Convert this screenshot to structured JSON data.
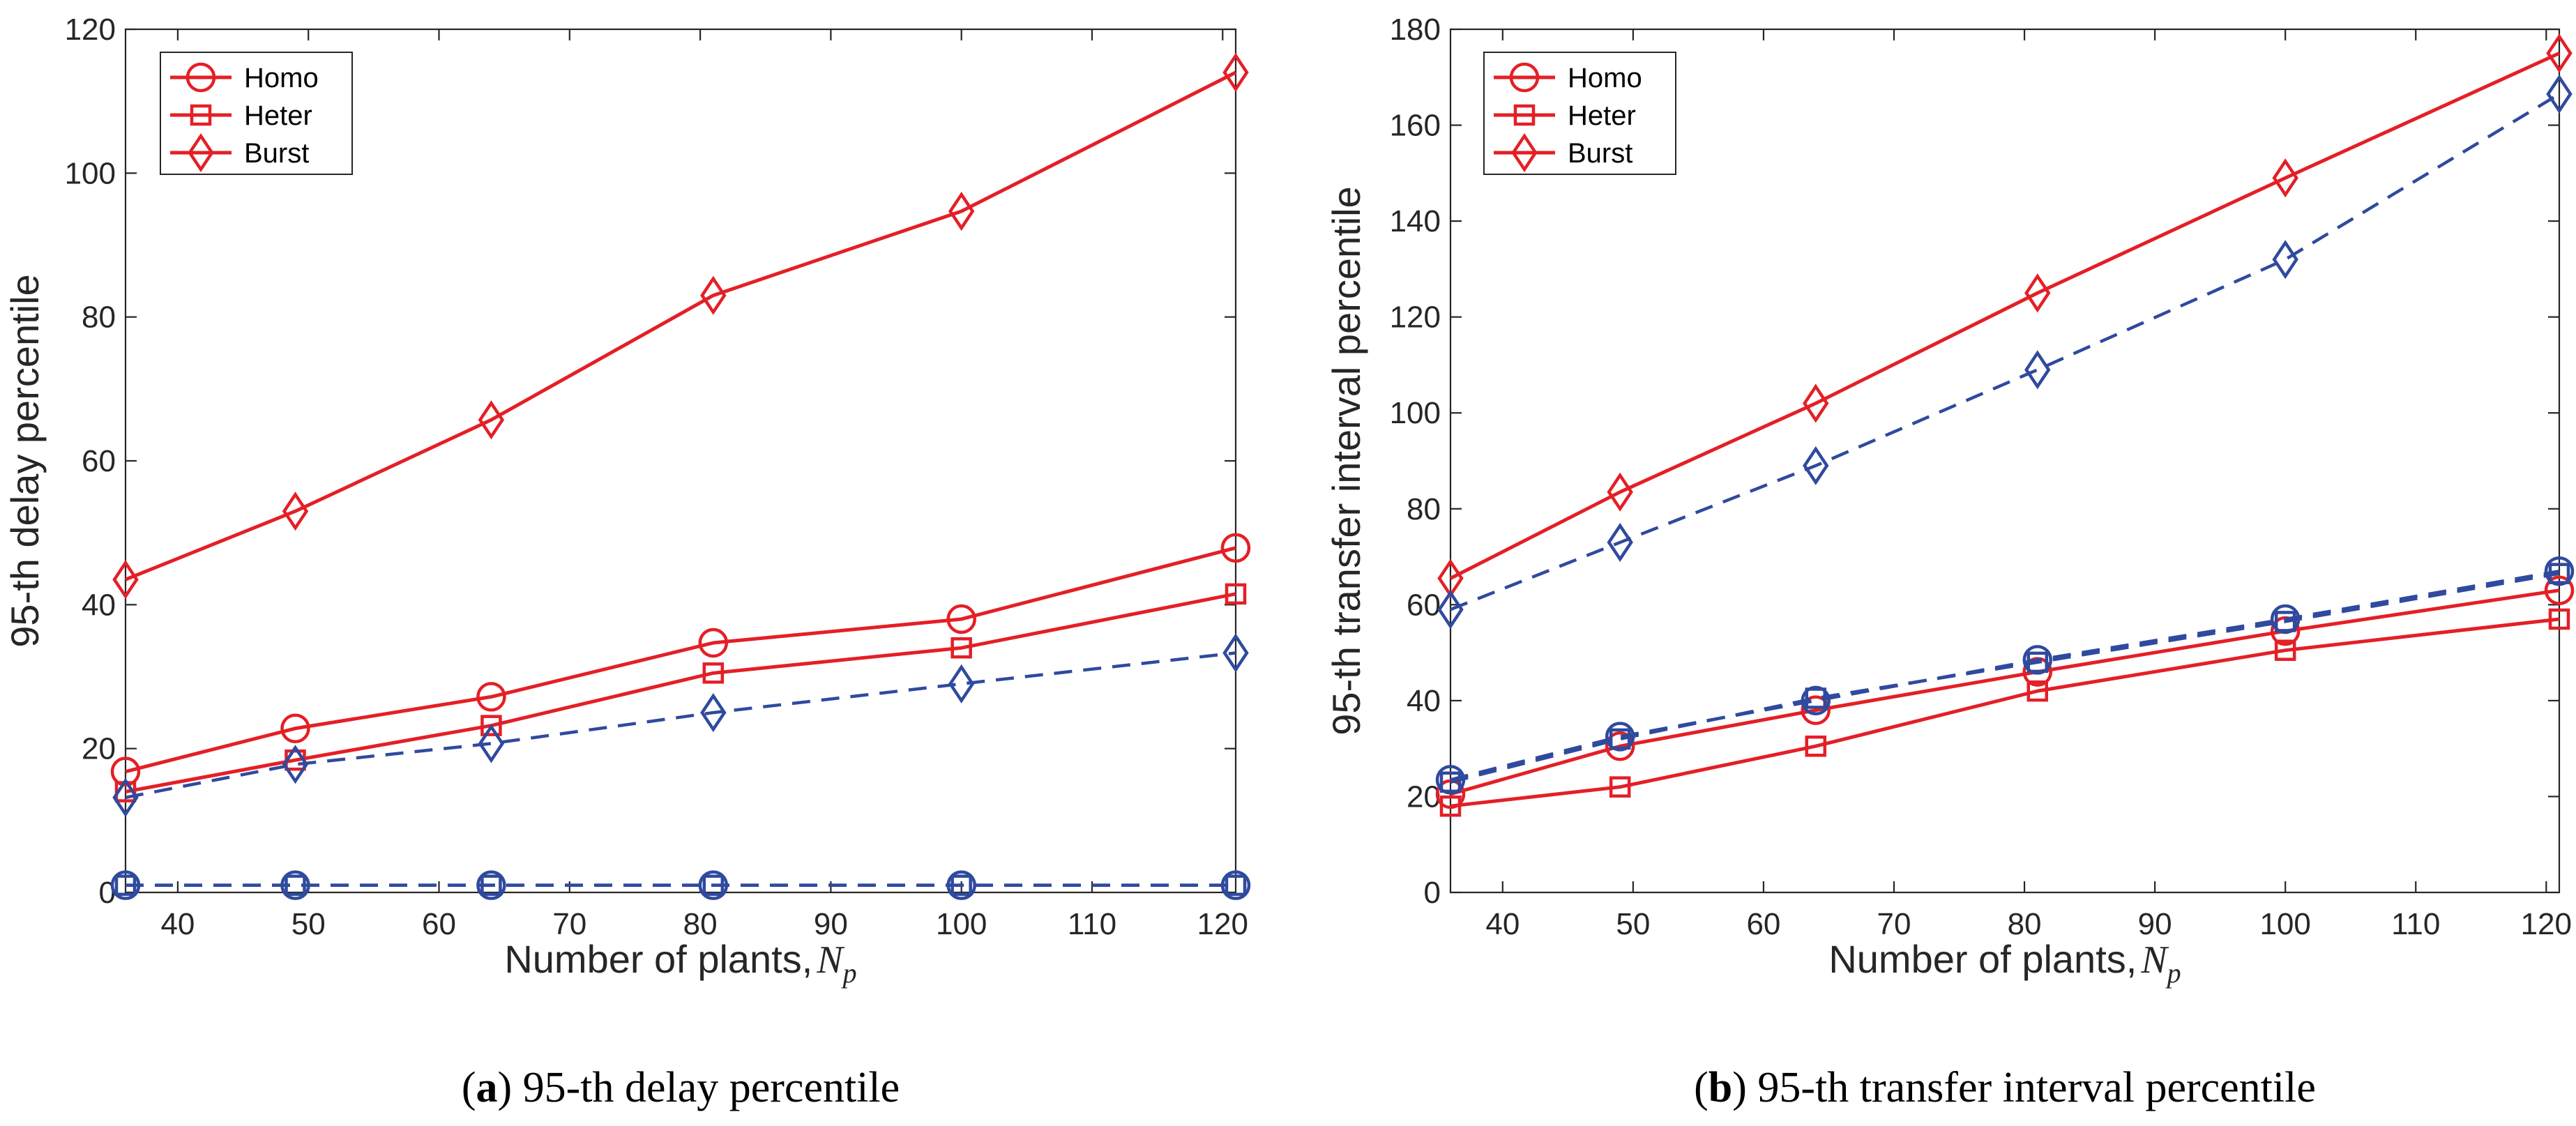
{
  "chart_data": [
    {
      "type": "line",
      "caption_tag": "a",
      "caption_text": " 95-th delay percentile",
      "xlabel": "Number of plants,",
      "xlabel_math": "N",
      "xlabel_sub": "p",
      "ylabel": "95-th delay percentile",
      "xlim": [
        36,
        121
      ],
      "ylim": [
        0,
        120
      ],
      "xticks": [
        40,
        50,
        60,
        70,
        80,
        90,
        100,
        110,
        120
      ],
      "yticks": [
        0,
        20,
        40,
        60,
        80,
        100,
        120
      ],
      "x": [
        36,
        49,
        64,
        81,
        100,
        121
      ],
      "legend_position": "top-left",
      "series": [
        {
          "name": "Homo",
          "marker": "circle",
          "style": "solid",
          "color": "#e41f26",
          "in_legend": true,
          "values": [
            16.8,
            22.8,
            27.2,
            34.7,
            38.0,
            47.9
          ]
        },
        {
          "name": "Heter",
          "marker": "square",
          "style": "solid",
          "color": "#e41f26",
          "in_legend": true,
          "values": [
            14.0,
            18.4,
            23.2,
            30.5,
            34.0,
            41.5
          ]
        },
        {
          "name": "Burst",
          "marker": "diamond",
          "style": "solid",
          "color": "#e41f26",
          "in_legend": true,
          "values": [
            43.5,
            53.0,
            65.7,
            83.0,
            94.7,
            114.0
          ]
        },
        {
          "name": "Homo (dashed)",
          "marker": "circle",
          "style": "dashed",
          "color": "#2f4a9e",
          "in_legend": false,
          "values": [
            1.0,
            1.0,
            1.0,
            1.0,
            1.0,
            1.0
          ]
        },
        {
          "name": "Heter (dashed)",
          "marker": "square",
          "style": "dashed",
          "color": "#2f4a9e",
          "in_legend": false,
          "values": [
            1.0,
            1.0,
            1.0,
            1.0,
            1.0,
            1.0
          ]
        },
        {
          "name": "Burst (dashed)",
          "marker": "diamond",
          "style": "dashed",
          "color": "#2f4a9e",
          "in_legend": false,
          "values": [
            13.2,
            17.8,
            20.7,
            25.0,
            29.0,
            33.3
          ]
        }
      ]
    },
    {
      "type": "line",
      "caption_tag": "b",
      "caption_text": " 95-th transfer interval percentile",
      "xlabel": "Number of plants,",
      "xlabel_math": "N",
      "xlabel_sub": "p",
      "ylabel": "95-th transfer interval percentile",
      "xlim": [
        36,
        121
      ],
      "ylim": [
        0,
        180
      ],
      "xticks": [
        40,
        50,
        60,
        70,
        80,
        90,
        100,
        110,
        120
      ],
      "yticks": [
        0,
        20,
        40,
        60,
        80,
        100,
        120,
        140,
        160,
        180
      ],
      "x": [
        36,
        49,
        64,
        81,
        100,
        121
      ],
      "legend_position": "top-left",
      "series": [
        {
          "name": "Homo",
          "marker": "circle",
          "style": "solid",
          "color": "#e41f26",
          "in_legend": true,
          "values": [
            20.5,
            30.5,
            38.0,
            46.0,
            54.5,
            63.0
          ]
        },
        {
          "name": "Heter",
          "marker": "square",
          "style": "solid",
          "color": "#e41f26",
          "in_legend": true,
          "values": [
            18.0,
            22.0,
            30.5,
            42.0,
            50.5,
            57.0
          ]
        },
        {
          "name": "Burst",
          "marker": "diamond",
          "style": "solid",
          "color": "#e41f26",
          "in_legend": true,
          "values": [
            65.5,
            83.5,
            102.0,
            125.0,
            149.0,
            175.0
          ]
        },
        {
          "name": "Homo (dashed)",
          "marker": "circle",
          "style": "dashed",
          "color": "#2f4a9e",
          "in_legend": false,
          "values": [
            23.5,
            32.5,
            40.0,
            48.5,
            57.0,
            67.0
          ]
        },
        {
          "name": "Heter (dashed)",
          "marker": "square",
          "style": "dashed",
          "color": "#2f4a9e",
          "in_legend": false,
          "values": [
            23.0,
            32.0,
            40.5,
            48.0,
            56.5,
            66.5
          ]
        },
        {
          "name": "Burst (dashed)",
          "marker": "diamond",
          "style": "dashed",
          "color": "#2f4a9e",
          "in_legend": false,
          "values": [
            59.0,
            73.0,
            89.0,
            109.0,
            132.0,
            166.5
          ]
        }
      ]
    }
  ]
}
